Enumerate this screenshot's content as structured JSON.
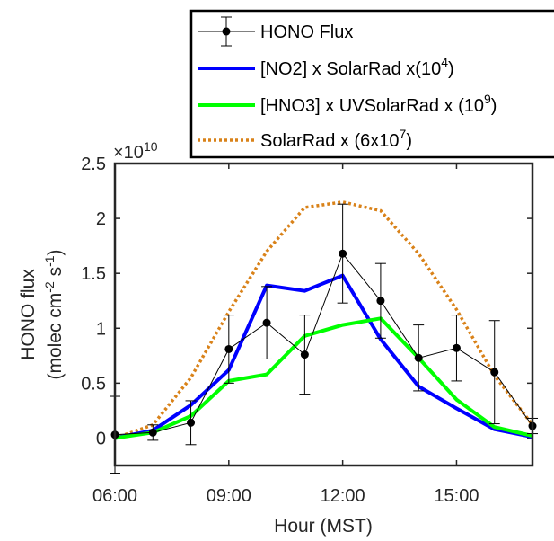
{
  "chart_data": {
    "type": "line",
    "xlabel": "Hour (MST)",
    "ylabel_line1": "HONO flux",
    "ylabel_line2_parts": [
      "(molec cm",
      "-2",
      " s",
      "-1",
      ")"
    ],
    "y_exponent_base": "×10",
    "y_exponent_power": "10",
    "xlim": [
      6,
      17
    ],
    "ylim": [
      -0.25,
      2.5
    ],
    "x_ticks": [
      6,
      9,
      12,
      15
    ],
    "x_tick_labels": [
      "06:00",
      "09:00",
      "12:00",
      "15:00"
    ],
    "y_ticks": [
      0,
      0.5,
      1,
      1.5,
      2,
      2.5
    ],
    "y_tick_labels": [
      "0",
      "0.5",
      "1",
      "1.5",
      "2",
      "2.5"
    ],
    "legend_position": "top-right",
    "series": [
      {
        "name": "HONO Flux",
        "legend_parts": [
          "HONO Flux"
        ],
        "color": "#000000",
        "style": "line-marker-errorbar",
        "x": [
          6,
          7,
          8,
          9,
          10,
          11,
          12,
          13,
          14,
          15,
          16,
          17
        ],
        "values": [
          0.03,
          0.05,
          0.14,
          0.81,
          1.05,
          0.76,
          1.68,
          1.25,
          0.73,
          0.82,
          0.6,
          0.11
        ],
        "err": [
          0.35,
          0.07,
          0.2,
          0.31,
          0.33,
          0.36,
          0.45,
          0.34,
          0.3,
          0.3,
          0.47,
          0.07
        ]
      },
      {
        "name": "[NO2] x SolarRad x(10^4)",
        "legend_parts": [
          "[NO2] x SolarRad x(10",
          "4",
          ")"
        ],
        "color": "#0000ff",
        "style": "solid",
        "x": [
          6,
          7,
          8,
          9,
          10,
          11,
          12,
          13,
          14,
          15,
          16,
          17
        ],
        "values": [
          0.0,
          0.07,
          0.3,
          0.62,
          1.39,
          1.34,
          1.48,
          0.9,
          0.47,
          0.27,
          0.08,
          0.01
        ]
      },
      {
        "name": "[HNO3] x UVSolarRad x (10^9)",
        "legend_parts": [
          "[HNO3] x UVSolarRad x (10",
          "9",
          ")"
        ],
        "color": "#00ff00",
        "style": "solid",
        "x": [
          6,
          7,
          8,
          9,
          10,
          11,
          12,
          13,
          14,
          15,
          16,
          17
        ],
        "values": [
          0.0,
          0.05,
          0.2,
          0.52,
          0.58,
          0.93,
          1.03,
          1.09,
          0.73,
          0.35,
          0.1,
          0.02
        ]
      },
      {
        "name": "SolarRad x (6x10^7)",
        "legend_parts": [
          "SolarRad x (6x10",
          "7",
          ")"
        ],
        "color": "#d98219",
        "style": "dotted",
        "x": [
          6,
          7,
          8,
          9,
          10,
          11,
          12,
          13,
          14,
          15,
          16,
          17
        ],
        "values": [
          0.0,
          0.12,
          0.55,
          1.15,
          1.7,
          2.1,
          2.15,
          2.07,
          1.68,
          1.17,
          0.57,
          0.12
        ]
      }
    ]
  }
}
